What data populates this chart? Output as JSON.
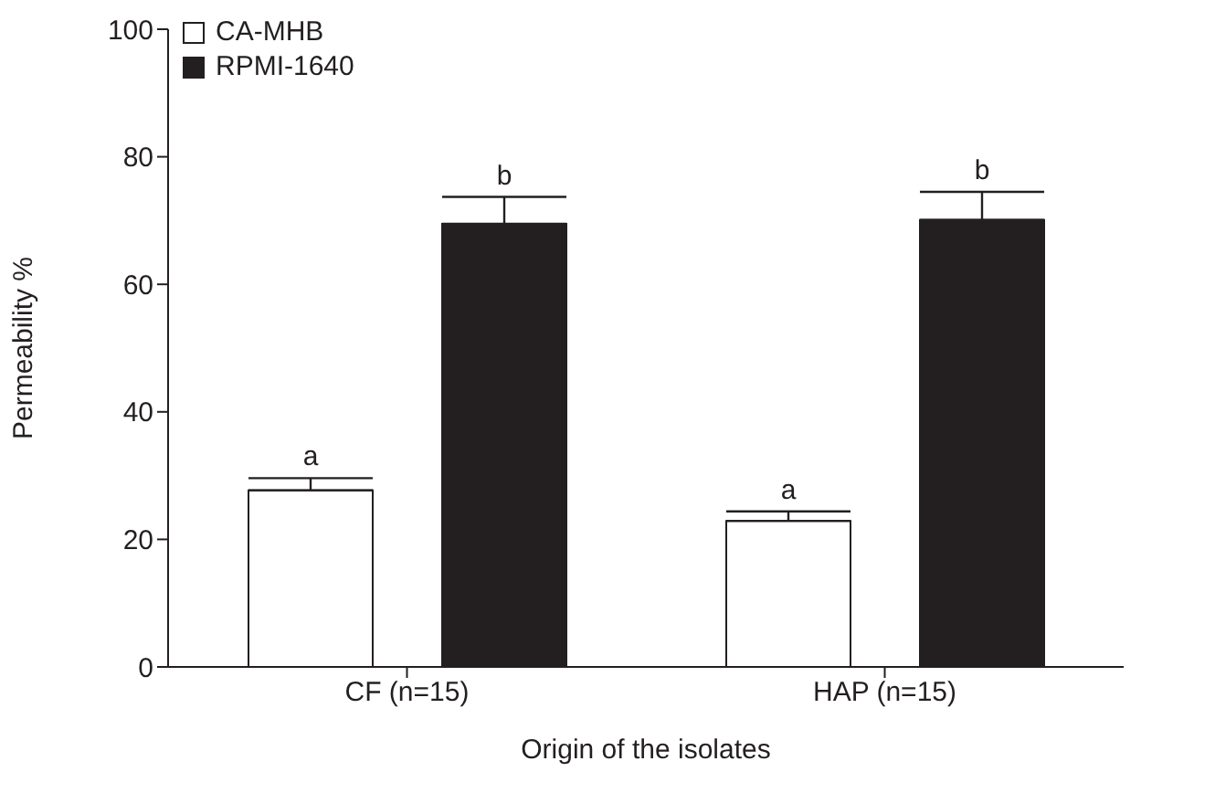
{
  "chart_data": {
    "type": "bar",
    "xlabel": "Origin of the isolates",
    "ylabel": "Permeability %",
    "categories": [
      "CF (n=15)",
      "HAP (n=15)"
    ],
    "series": [
      {
        "name": "CA-MHB",
        "color": "#ffffff",
        "values": [
          27.7,
          22.9
        ],
        "errors": [
          [
            27.7,
            29.6
          ],
          [
            22.9,
            24.4
          ]
        ]
      },
      {
        "name": "RPMI-1640",
        "color": "#231f20",
        "values": [
          69.5,
          70.1
        ],
        "errors": [
          [
            69.5,
            73.7
          ],
          [
            70.1,
            74.5
          ]
        ]
      }
    ],
    "ylim": [
      0,
      100
    ],
    "yticks": [
      0,
      20,
      40,
      60,
      80,
      100
    ],
    "grid": false,
    "legend": "top left",
    "annotations": [
      "a",
      "b",
      "a",
      "b"
    ]
  }
}
